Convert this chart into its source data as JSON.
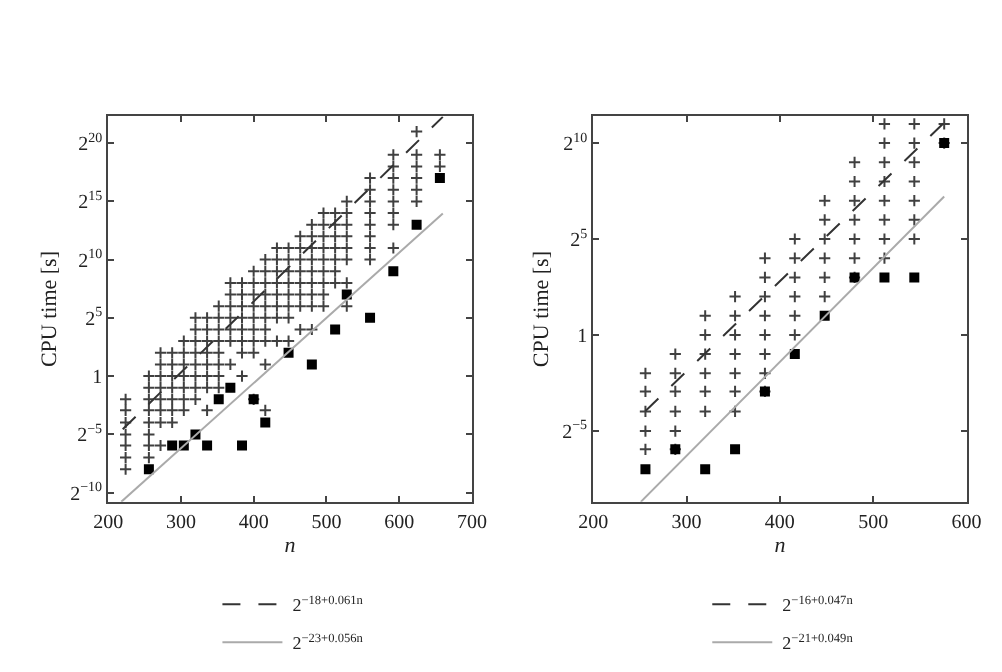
{
  "chart_data": [
    {
      "type": "scatter",
      "xlabel": "n",
      "ylabel": "CPU time [s]",
      "log": "y",
      "grid": false,
      "legend": "bottom",
      "xlim": [
        200,
        700
      ],
      "xticks": [
        200,
        300,
        400,
        500,
        600,
        700
      ],
      "ylim": [
        0.00056,
        5200000
      ],
      "yticks": [
        {
          "value": 0.0009765625,
          "label": "2$^{−10}$"
        },
        {
          "value": 0.03125,
          "label": "2$^{−5}$"
        },
        1,
        {
          "value": 32,
          "label": "2$^{5}$"
        },
        {
          "value": 1024,
          "label": "2$^{10}$"
        },
        {
          "value": 32768,
          "label": "2$^{15}$"
        },
        {
          "value": 1048576,
          "label": "2$^{20}$"
        }
      ],
      "series": [
        {
          "marker": "cross",
          "color": "#404040",
          "x": [
            224,
            224,
            224,
            224,
            224,
            224,
            224,
            256,
            256,
            256,
            256,
            256,
            256,
            256,
            256,
            272,
            272,
            272,
            272,
            272,
            272,
            272,
            272,
            288,
            288,
            288,
            288,
            288,
            288,
            288,
            304,
            304,
            304,
            304,
            304,
            304,
            304,
            320,
            320,
            320,
            320,
            320,
            320,
            320,
            320,
            336,
            336,
            336,
            336,
            336,
            336,
            336,
            336,
            352,
            352,
            352,
            352,
            352,
            352,
            352,
            352,
            368,
            368,
            368,
            368,
            368,
            368,
            368,
            384,
            384,
            384,
            384,
            384,
            384,
            384,
            384,
            400,
            400,
            400,
            400,
            400,
            400,
            400,
            400,
            400,
            416,
            416,
            416,
            416,
            416,
            416,
            416,
            416,
            416,
            416,
            432,
            432,
            432,
            432,
            432,
            432,
            432,
            432,
            448,
            448,
            448,
            448,
            448,
            448,
            448,
            448,
            464,
            464,
            464,
            464,
            464,
            464,
            464,
            464,
            480,
            480,
            480,
            480,
            480,
            480,
            480,
            480,
            480,
            496,
            496,
            496,
            496,
            496,
            496,
            496,
            496,
            496,
            512,
            512,
            512,
            512,
            512,
            512,
            512,
            528,
            528,
            528,
            528,
            528,
            528,
            528,
            528,
            560,
            560,
            560,
            560,
            560,
            560,
            560,
            560,
            592,
            592,
            592,
            592,
            592,
            592,
            592,
            592,
            624,
            624,
            624,
            624,
            624,
            624,
            656,
            656
          ],
          "values": [
            0.25,
            0.13,
            0.063,
            0.031,
            0.016,
            0.0078,
            0.0039,
            1,
            0.5,
            0.25,
            0.13,
            0.063,
            0.031,
            0.016,
            0.0078,
            4,
            2,
            1,
            0.5,
            0.25,
            0.13,
            0.063,
            0.016,
            4,
            2,
            1,
            0.5,
            0.25,
            0.13,
            0.063,
            8,
            4,
            2,
            1,
            0.5,
            0.25,
            0.13,
            32,
            16,
            8,
            4,
            2,
            1,
            0.5,
            0.25,
            32,
            16,
            8,
            4,
            2,
            1,
            0.5,
            0.13,
            64,
            32,
            16,
            8,
            4,
            2,
            1,
            0.5,
            256,
            128,
            64,
            32,
            16,
            8,
            2,
            256,
            128,
            64,
            32,
            16,
            8,
            4,
            1,
            512,
            256,
            128,
            64,
            32,
            16,
            8,
            4,
            0.25,
            1024,
            512,
            256,
            128,
            64,
            32,
            16,
            8,
            2,
            0.13,
            2048,
            1024,
            512,
            256,
            128,
            64,
            32,
            8,
            2048,
            1024,
            512,
            256,
            128,
            64,
            32,
            8,
            4096,
            2048,
            1024,
            512,
            256,
            128,
            64,
            16,
            8192,
            4096,
            2048,
            1024,
            512,
            256,
            128,
            64,
            16,
            16384,
            8192,
            4096,
            2048,
            1024,
            512,
            256,
            128,
            64,
            16384,
            8192,
            4096,
            2048,
            1024,
            512,
            256,
            32768,
            16384,
            8192,
            4096,
            2048,
            1024,
            256,
            64,
            131072,
            65536,
            32768,
            16384,
            8192,
            4096,
            2048,
            1024,
            524288,
            262144,
            131072,
            65536,
            32768,
            16384,
            8192,
            2048,
            2097152,
            524288,
            262144,
            131072,
            65536,
            32768,
            524288,
            262144
          ]
        },
        {
          "marker": "square",
          "color": "#000000",
          "x": [
            256,
            288,
            304,
            320,
            336,
            352,
            368,
            384,
            400,
            416,
            448,
            480,
            512,
            528,
            560,
            592,
            624,
            656
          ],
          "values": [
            0.0039,
            0.016,
            0.016,
            0.031,
            0.016,
            0.25,
            0.5,
            0.016,
            0.25,
            0.063,
            4,
            2,
            16,
            128,
            32,
            512,
            8192,
            131072
          ]
        },
        {
          "type": "line",
          "name": "2$^{−18+0.061n}$",
          "line_style": "dashed",
          "color": "#333333",
          "x": [
            220,
            660
          ],
          "values": [
            0.042,
            5020000
          ]
        },
        {
          "type": "line",
          "name": "2$^{−23+0.056n}$",
          "line_style": "solid",
          "color": "#aaaaaa",
          "x": [
            218,
            660
          ],
          "values": [
            0.00056,
            15900
          ]
        }
      ]
    },
    {
      "type": "scatter",
      "xlabel": "n",
      "ylabel": "CPU time [s]",
      "log": "y",
      "grid": false,
      "legend": "bottom",
      "xlim": [
        200,
        600
      ],
      "xticks": [
        200,
        300,
        400,
        500,
        600
      ],
      "ylim": [
        0.0024,
        2700
      ],
      "yticks": [
        {
          "value": 0.03125,
          "label": "2$^{−5}$"
        },
        1,
        {
          "value": 32,
          "label": "2$^{5}$"
        },
        {
          "value": 1024,
          "label": "2$^{10}$"
        }
      ],
      "series": [
        {
          "marker": "cross",
          "color": "#404040",
          "x": [
            256,
            256,
            256,
            256,
            256,
            288,
            288,
            288,
            288,
            288,
            288,
            320,
            320,
            320,
            320,
            320,
            320,
            352,
            352,
            352,
            352,
            352,
            352,
            352,
            384,
            384,
            384,
            384,
            384,
            384,
            384,
            384,
            416,
            416,
            416,
            416,
            416,
            416,
            448,
            448,
            448,
            448,
            448,
            448,
            480,
            480,
            480,
            480,
            480,
            480,
            480,
            512,
            512,
            512,
            512,
            512,
            512,
            512,
            512,
            544,
            544,
            544,
            544,
            544,
            544,
            544,
            576,
            576
          ],
          "values": [
            0.25,
            0.13,
            0.063,
            0.031,
            0.016,
            0.5,
            0.25,
            0.13,
            0.063,
            0.031,
            0.016,
            2,
            1,
            0.5,
            0.25,
            0.13,
            0.063,
            4,
            2,
            1,
            0.5,
            0.25,
            0.13,
            0.063,
            16,
            8,
            4,
            2,
            1,
            0.5,
            0.25,
            0.13,
            32,
            16,
            8,
            4,
            2,
            1,
            128,
            64,
            32,
            16,
            8,
            4,
            512,
            256,
            128,
            64,
            32,
            16,
            8,
            2048,
            1024,
            512,
            256,
            128,
            64,
            32,
            16,
            2048,
            1024,
            512,
            256,
            128,
            64,
            32,
            2048,
            1024
          ]
        },
        {
          "marker": "square",
          "color": "#000000",
          "x": [
            256,
            288,
            320,
            352,
            384,
            416,
            448,
            480,
            512,
            544,
            576
          ],
          "values": [
            0.0078,
            0.016,
            0.0078,
            0.016,
            0.13,
            0.5,
            2,
            8,
            8,
            8,
            1024
          ]
        },
        {
          "type": "line",
          "name": "2$^{−16+0.047n}$",
          "line_style": "dashed",
          "color": "#333333",
          "x": [
            256,
            576
          ],
          "values": [
            0.064,
            2150
          ]
        },
        {
          "type": "line",
          "name": "2$^{−21+0.049n}$",
          "line_style": "solid",
          "color": "#aaaaaa",
          "x": [
            251,
            576
          ],
          "values": [
            0.0024,
            149
          ]
        }
      ]
    }
  ]
}
